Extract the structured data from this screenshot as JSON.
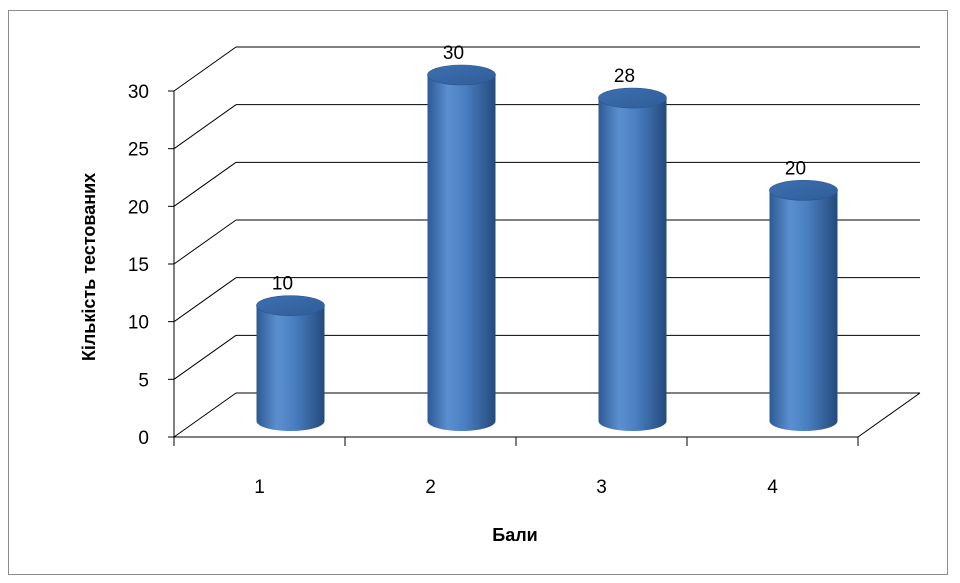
{
  "chart_data": {
    "type": "bar",
    "categories": [
      "1",
      "2",
      "3",
      "4"
    ],
    "values": [
      10,
      30,
      28,
      20
    ],
    "title": "",
    "xlabel": "Бали",
    "ylabel": "Кількість тестованих",
    "ylim": [
      0,
      30
    ],
    "yticks": [
      "0",
      "5",
      "10",
      "15",
      "20",
      "25",
      "30"
    ],
    "data_labels": [
      "10",
      "30",
      "28",
      "20"
    ],
    "grid": true,
    "style": "3d-cylinder",
    "bar_color": "#4f81bd"
  }
}
